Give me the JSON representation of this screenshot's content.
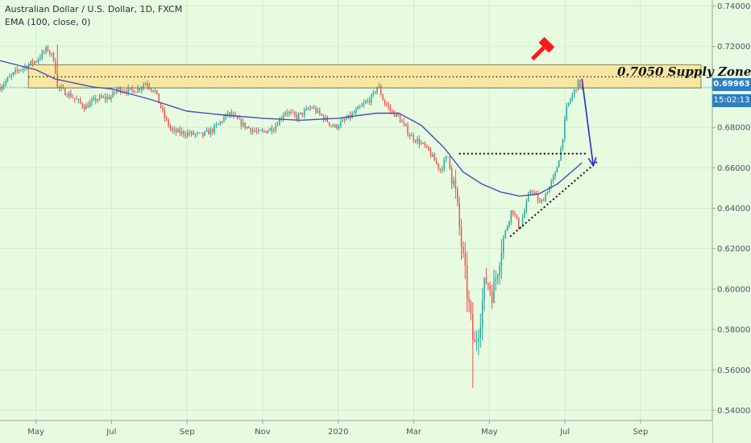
{
  "legend": {
    "title": "Australian Dollar / U.S. Dollar, 1D, FXCM",
    "indicator": "EMA (100, close, 0)"
  },
  "badges": {
    "last_price": "0.69963",
    "countdown": "15:02:13"
  },
  "annotation": {
    "supply_label": "0.7050 Supply Zone"
  },
  "colors": {
    "background": "#e6fbe0",
    "up_candle": "#26a69a",
    "down_candle": "#ef5350",
    "ema_line": "#4a4fb5",
    "supply_zone_fill": "#f7e7a3",
    "arrow": "#1f2fd0",
    "hammer_icon": "#ff1a1a",
    "price_badge": "#2f7ec4"
  },
  "icons": [
    "hammer-icon"
  ],
  "chart_data": {
    "type": "candlestick",
    "title": "Australian Dollar / U.S. Dollar, 1D, FXCM",
    "ylim": [
      0.535,
      0.743
    ],
    "y_ticks": [
      0.54,
      0.56,
      0.58,
      0.6,
      0.62,
      0.64,
      0.66,
      0.68,
      0.7,
      0.72,
      0.74
    ],
    "x_labels": [
      "May",
      "Jul",
      "Sep",
      "Nov",
      "2020",
      "Mar",
      "May",
      "Jul",
      "Sep"
    ],
    "x_label_months": [
      1,
      3,
      5,
      7,
      9,
      11,
      13,
      15,
      17
    ],
    "x_range_months": [
      0.05,
      18.9
    ],
    "last_price": 0.69963,
    "anchors": [
      {
        "t": 0.05,
        "p": 0.7
      },
      {
        "t": 0.5,
        "p": 0.708
      },
      {
        "t": 1.0,
        "p": 0.713
      },
      {
        "t": 1.3,
        "p": 0.719
      },
      {
        "t": 1.5,
        "p": 0.713
      },
      {
        "t": 1.55,
        "p": 0.7
      },
      {
        "t": 1.9,
        "p": 0.696
      },
      {
        "t": 2.3,
        "p": 0.69
      },
      {
        "t": 2.6,
        "p": 0.694
      },
      {
        "t": 3.0,
        "p": 0.695
      },
      {
        "t": 3.15,
        "p": 0.699
      },
      {
        "t": 3.5,
        "p": 0.698
      },
      {
        "t": 3.7,
        "p": 0.699
      },
      {
        "t": 3.9,
        "p": 0.702
      },
      {
        "t": 4.15,
        "p": 0.698
      },
      {
        "t": 4.4,
        "p": 0.685
      },
      {
        "t": 4.6,
        "p": 0.678
      },
      {
        "t": 5.0,
        "p": 0.677
      },
      {
        "t": 5.4,
        "p": 0.676
      },
      {
        "t": 5.7,
        "p": 0.679
      },
      {
        "t": 6.1,
        "p": 0.687
      },
      {
        "t": 6.5,
        "p": 0.681
      },
      {
        "t": 6.9,
        "p": 0.677
      },
      {
        "t": 7.3,
        "p": 0.68
      },
      {
        "t": 7.6,
        "p": 0.688
      },
      {
        "t": 7.9,
        "p": 0.685
      },
      {
        "t": 8.3,
        "p": 0.69
      },
      {
        "t": 8.6,
        "p": 0.685
      },
      {
        "t": 8.9,
        "p": 0.68
      },
      {
        "t": 9.3,
        "p": 0.685
      },
      {
        "t": 9.6,
        "p": 0.69
      },
      {
        "t": 9.9,
        "p": 0.695
      },
      {
        "t": 10.05,
        "p": 0.701
      },
      {
        "t": 10.2,
        "p": 0.693
      },
      {
        "t": 10.4,
        "p": 0.688
      },
      {
        "t": 10.6,
        "p": 0.685
      },
      {
        "t": 10.9,
        "p": 0.676
      },
      {
        "t": 11.2,
        "p": 0.672
      },
      {
        "t": 11.4,
        "p": 0.668
      },
      {
        "t": 11.7,
        "p": 0.659
      },
      {
        "t": 11.9,
        "p": 0.666
      },
      {
        "t": 12.1,
        "p": 0.648
      },
      {
        "t": 12.3,
        "p": 0.615
      },
      {
        "t": 12.5,
        "p": 0.585
      },
      {
        "t": 12.6,
        "p": 0.57
      },
      {
        "t": 12.75,
        "p": 0.585
      },
      {
        "t": 12.9,
        "p": 0.605
      },
      {
        "t": 13.1,
        "p": 0.598
      },
      {
        "t": 13.3,
        "p": 0.62
      },
      {
        "t": 13.6,
        "p": 0.64
      },
      {
        "t": 13.8,
        "p": 0.63
      },
      {
        "t": 14.1,
        "p": 0.65
      },
      {
        "t": 14.35,
        "p": 0.642
      },
      {
        "t": 14.6,
        "p": 0.651
      },
      {
        "t": 14.75,
        "p": 0.657
      },
      {
        "t": 14.9,
        "p": 0.67
      },
      {
        "t": 15.05,
        "p": 0.69
      },
      {
        "t": 15.2,
        "p": 0.696
      },
      {
        "t": 15.35,
        "p": 0.702
      },
      {
        "t": 15.45,
        "p": 0.69963
      }
    ],
    "ema": [
      {
        "t": 0.05,
        "p": 0.713
      },
      {
        "t": 1.0,
        "p": 0.7085
      },
      {
        "t": 1.5,
        "p": 0.704
      },
      {
        "t": 2.5,
        "p": 0.7
      },
      {
        "t": 3.0,
        "p": 0.699
      },
      {
        "t": 4.0,
        "p": 0.694
      },
      {
        "t": 5.0,
        "p": 0.688
      },
      {
        "t": 6.0,
        "p": 0.686
      },
      {
        "t": 7.0,
        "p": 0.6845
      },
      {
        "t": 8.0,
        "p": 0.6835
      },
      {
        "t": 9.0,
        "p": 0.6845
      },
      {
        "t": 10.0,
        "p": 0.687
      },
      {
        "t": 10.6,
        "p": 0.687
      },
      {
        "t": 11.2,
        "p": 0.681
      },
      {
        "t": 11.8,
        "p": 0.67
      },
      {
        "t": 12.3,
        "p": 0.658
      },
      {
        "t": 12.8,
        "p": 0.652
      },
      {
        "t": 13.3,
        "p": 0.648
      },
      {
        "t": 13.8,
        "p": 0.646
      },
      {
        "t": 14.3,
        "p": 0.647
      },
      {
        "t": 14.8,
        "p": 0.652
      },
      {
        "t": 15.3,
        "p": 0.66
      },
      {
        "t": 15.45,
        "p": 0.6625
      }
    ],
    "wick_extremes": [
      {
        "t": 12.55,
        "p": 0.551,
        "kind": "low"
      },
      {
        "t": 1.55,
        "p": 0.721,
        "kind": "high"
      }
    ],
    "supply_zone": {
      "t0": 0.8,
      "t1": 18.6,
      "p_low": 0.6995,
      "p_high": 0.711,
      "mid": 0.705
    },
    "support_line": {
      "t0": 12.2,
      "t1": 15.55,
      "p": 0.667
    },
    "trend_line": {
      "t0": 13.55,
      "p0": 0.626,
      "t1": 15.85,
      "p1": 0.663
    },
    "forecast_arrow": {
      "t0": 15.45,
      "p0": 0.704,
      "t1": 15.75,
      "p1": 0.661
    }
  }
}
